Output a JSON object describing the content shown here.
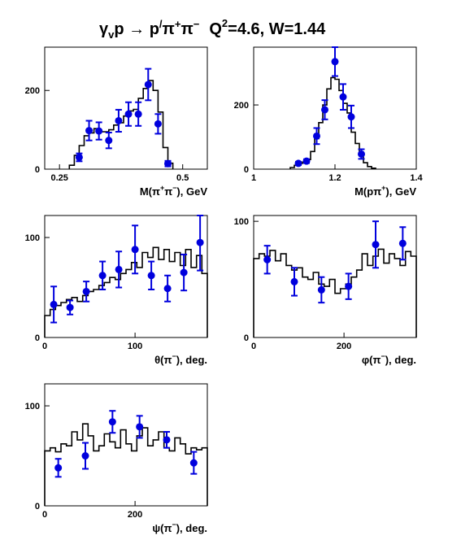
{
  "figure": {
    "title_parts": {
      "gamma": "γ",
      "v_sub": "v",
      "p": "p",
      "arrow": " → ",
      "p2": "p",
      "prime": "/",
      "pi1": "π",
      "plus": "+",
      "pi2": "π",
      "minus": "−",
      "q": "Q",
      "sq": "2",
      "rest": "=4.6, W=1.44"
    },
    "colors": {
      "data": "#0000dd",
      "model": "#000000",
      "frame": "#000000"
    }
  },
  "chart_data": [
    {
      "type": "histogram-with-points",
      "xlabel_parts": [
        "M(π",
        "+",
        "π",
        "−",
        "), GeV"
      ],
      "xlim": [
        0.22,
        0.55
      ],
      "ylim": [
        0,
        310
      ],
      "xticks": [
        0.25,
        0.5
      ],
      "xtick_labels": [
        "0.25",
        "0.5"
      ],
      "yticks": [
        0,
        200
      ],
      "ytick_labels": [
        "0",
        "200"
      ],
      "points": [
        {
          "x": 0.29,
          "y": 30,
          "err": 10
        },
        {
          "x": 0.31,
          "y": 98,
          "err": 25
        },
        {
          "x": 0.33,
          "y": 97,
          "err": 22
        },
        {
          "x": 0.35,
          "y": 73,
          "err": 20
        },
        {
          "x": 0.37,
          "y": 123,
          "err": 28
        },
        {
          "x": 0.39,
          "y": 140,
          "err": 30
        },
        {
          "x": 0.41,
          "y": 140,
          "err": 30
        },
        {
          "x": 0.43,
          "y": 215,
          "err": 40
        },
        {
          "x": 0.45,
          "y": 115,
          "err": 25
        },
        {
          "x": 0.47,
          "y": 14,
          "err": 7
        }
      ],
      "hist": {
        "edges": [
          0.27,
          0.28,
          0.29,
          0.3,
          0.31,
          0.32,
          0.33,
          0.34,
          0.35,
          0.36,
          0.37,
          0.38,
          0.39,
          0.4,
          0.41,
          0.42,
          0.43,
          0.44,
          0.45,
          0.46,
          0.47,
          0.48
        ],
        "values": [
          10,
          35,
          60,
          85,
          92,
          103,
          95,
          95,
          100,
          112,
          118,
          135,
          148,
          152,
          180,
          205,
          225,
          200,
          145,
          55,
          15
        ]
      }
    },
    {
      "type": "histogram-with-points",
      "xlabel_parts": [
        "M(pπ",
        "+",
        "), GeV"
      ],
      "xlim": [
        1.0,
        1.4
      ],
      "ylim": [
        0,
        380
      ],
      "xticks": [
        1.0,
        1.2,
        1.4
      ],
      "xtick_labels": [
        "1",
        "1.2",
        "1.4"
      ],
      "yticks": [
        0,
        200
      ],
      "ytick_labels": [
        "0",
        "200"
      ],
      "points": [
        {
          "x": 1.11,
          "y": 18,
          "err": 5
        },
        {
          "x": 1.13,
          "y": 25,
          "err": 6
        },
        {
          "x": 1.155,
          "y": 103,
          "err": 25
        },
        {
          "x": 1.175,
          "y": 185,
          "err": 30
        },
        {
          "x": 1.2,
          "y": 335,
          "err": 45
        },
        {
          "x": 1.22,
          "y": 225,
          "err": 40
        },
        {
          "x": 1.24,
          "y": 163,
          "err": 35
        },
        {
          "x": 1.265,
          "y": 47,
          "err": 15
        }
      ],
      "hist": {
        "edges": [
          1.09,
          1.1,
          1.11,
          1.12,
          1.13,
          1.14,
          1.15,
          1.16,
          1.17,
          1.18,
          1.19,
          1.2,
          1.21,
          1.22,
          1.23,
          1.24,
          1.25,
          1.26,
          1.27,
          1.28,
          1.29,
          1.3
        ],
        "values": [
          5,
          12,
          18,
          22,
          30,
          55,
          95,
          145,
          200,
          250,
          285,
          280,
          245,
          205,
          175,
          115,
          80,
          45,
          20,
          8,
          3
        ]
      }
    },
    {
      "type": "histogram-with-points",
      "xlabel_parts": [
        "θ(π",
        "−",
        "), deg."
      ],
      "xlim": [
        0,
        180
      ],
      "ylim": [
        0,
        122
      ],
      "xticks": [
        0,
        100
      ],
      "xtick_labels": [
        "0",
        "100"
      ],
      "yticks": [
        0,
        100
      ],
      "ytick_labels": [
        "0",
        "100"
      ],
      "points": [
        {
          "x": 10,
          "y": 33,
          "err": 18
        },
        {
          "x": 28,
          "y": 30,
          "err": 7
        },
        {
          "x": 46,
          "y": 46,
          "err": 10
        },
        {
          "x": 64,
          "y": 62,
          "err": 14
        },
        {
          "x": 82,
          "y": 68,
          "err": 18
        },
        {
          "x": 100,
          "y": 88,
          "err": 24
        },
        {
          "x": 118,
          "y": 62,
          "err": 14
        },
        {
          "x": 136,
          "y": 49,
          "err": 13
        },
        {
          "x": 154,
          "y": 65,
          "err": 18
        },
        {
          "x": 172,
          "y": 95,
          "err": 28
        }
      ],
      "hist": {
        "edges": [
          0,
          6,
          12,
          18,
          24,
          30,
          36,
          42,
          48,
          54,
          60,
          66,
          72,
          78,
          84,
          90,
          96,
          102,
          108,
          114,
          120,
          126,
          132,
          138,
          144,
          150,
          156,
          162,
          168,
          174,
          180
        ],
        "values": [
          22,
          28,
          32,
          35,
          38,
          40,
          36,
          42,
          46,
          48,
          52,
          55,
          60,
          58,
          64,
          68,
          75,
          70,
          85,
          80,
          90,
          78,
          88,
          76,
          85,
          72,
          88,
          70,
          82,
          64
        ]
      }
    },
    {
      "type": "histogram-with-points",
      "xlabel_parts": [
        "φ(π",
        "−",
        "), deg."
      ],
      "xlim": [
        0,
        360
      ],
      "ylim": [
        0,
        105
      ],
      "xticks": [
        0,
        200
      ],
      "xtick_labels": [
        "0",
        "200"
      ],
      "yticks": [
        0,
        100
      ],
      "ytick_labels": [
        "0",
        "100"
      ],
      "points": [
        {
          "x": 30,
          "y": 67,
          "err": 12
        },
        {
          "x": 90,
          "y": 48,
          "err": 12
        },
        {
          "x": 150,
          "y": 41,
          "err": 11
        },
        {
          "x": 210,
          "y": 44,
          "err": 11
        },
        {
          "x": 270,
          "y": 80,
          "err": 20
        },
        {
          "x": 330,
          "y": 81,
          "err": 14
        }
      ],
      "hist": {
        "edges": [
          0,
          12,
          24,
          36,
          48,
          60,
          72,
          84,
          96,
          108,
          120,
          132,
          144,
          156,
          168,
          180,
          192,
          204,
          216,
          228,
          240,
          252,
          264,
          276,
          288,
          300,
          312,
          324,
          336,
          348,
          360
        ],
        "values": [
          68,
          72,
          70,
          75,
          66,
          72,
          62,
          58,
          60,
          52,
          50,
          56,
          46,
          44,
          50,
          38,
          42,
          46,
          52,
          58,
          72,
          62,
          70,
          76,
          64,
          72,
          68,
          62,
          74,
          70
        ]
      }
    },
    {
      "type": "histogram-with-points",
      "xlabel_parts": [
        "ψ(π",
        "−",
        "), deg."
      ],
      "xlim": [
        0,
        360
      ],
      "ylim": [
        0,
        122
      ],
      "xticks": [
        0,
        200
      ],
      "xtick_labels": [
        "0",
        "200"
      ],
      "yticks": [
        0,
        100
      ],
      "ytick_labels": [
        "0",
        "100"
      ],
      "points": [
        {
          "x": 30,
          "y": 38,
          "err": 9
        },
        {
          "x": 90,
          "y": 50,
          "err": 13
        },
        {
          "x": 150,
          "y": 84,
          "err": 11
        },
        {
          "x": 210,
          "y": 79,
          "err": 11
        },
        {
          "x": 270,
          "y": 66,
          "err": 8
        },
        {
          "x": 330,
          "y": 43,
          "err": 11
        }
      ],
      "hist": {
        "edges": [
          0,
          12,
          24,
          36,
          48,
          60,
          72,
          84,
          96,
          108,
          120,
          132,
          144,
          156,
          168,
          180,
          192,
          204,
          216,
          228,
          240,
          252,
          264,
          276,
          288,
          300,
          312,
          324,
          336,
          348,
          360
        ],
        "values": [
          55,
          58,
          54,
          62,
          60,
          74,
          66,
          82,
          70,
          55,
          60,
          72,
          64,
          58,
          76,
          62,
          55,
          70,
          78,
          60,
          66,
          74,
          58,
          55,
          68,
          62,
          52,
          58,
          56,
          58
        ]
      }
    }
  ]
}
